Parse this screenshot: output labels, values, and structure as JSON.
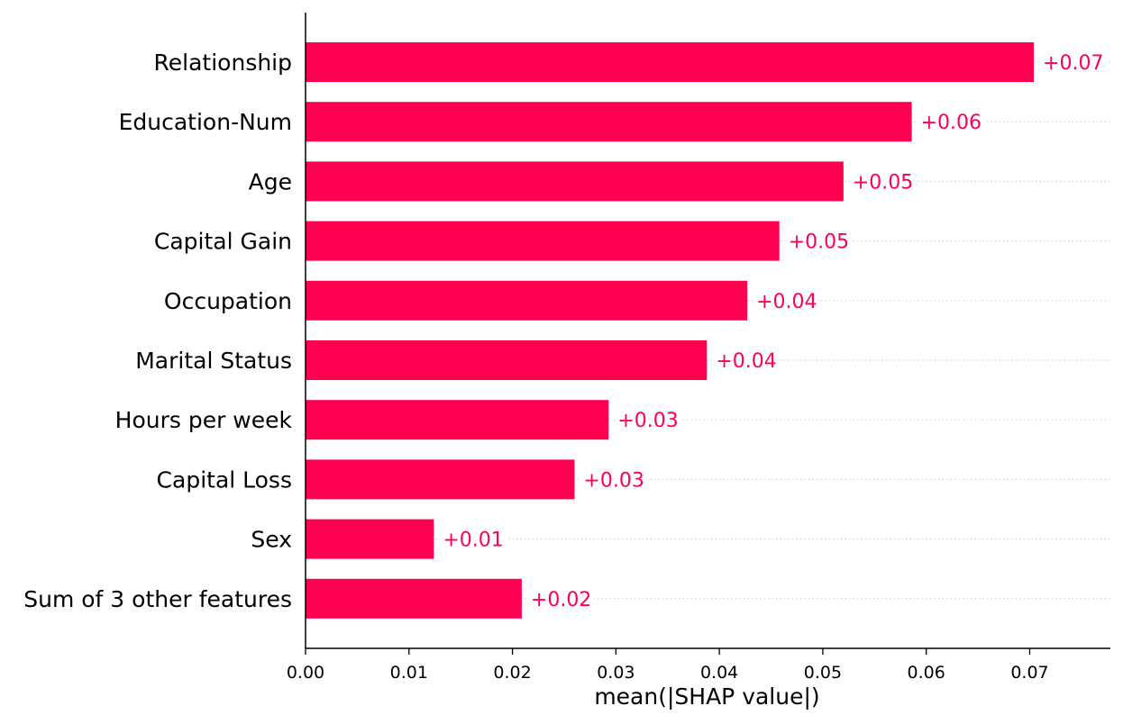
{
  "chart_data": {
    "type": "bar",
    "orientation": "horizontal",
    "categories": [
      "Relationship",
      "Education-Num",
      "Age",
      "Capital Gain",
      "Occupation",
      "Marital Status",
      "Hours per week",
      "Capital Loss",
      "Sex",
      "Sum of 3 other features"
    ],
    "values": [
      0.0704,
      0.0586,
      0.052,
      0.0458,
      0.0427,
      0.0388,
      0.0293,
      0.026,
      0.0124,
      0.0209
    ],
    "value_labels": [
      "+0.07",
      "+0.06",
      "+0.05",
      "+0.05",
      "+0.04",
      "+0.04",
      "+0.03",
      "+0.03",
      "+0.01",
      "+0.02"
    ],
    "xlabel": "mean(|SHAP value|)",
    "ylabel": "",
    "title": "",
    "xlim": [
      0,
      0.0778
    ],
    "xticks": [
      0.0,
      0.01,
      0.02,
      0.03,
      0.04,
      0.05,
      0.06,
      0.07
    ],
    "xtick_labels": [
      "0.00",
      "0.01",
      "0.02",
      "0.03",
      "0.04",
      "0.05",
      "0.06",
      "0.07"
    ],
    "grid": "dotted horizontal guides per bar",
    "bar_color": "#ff0051",
    "label_color": "#ff0051",
    "axis_color": "#000000",
    "guide_color": "#cccccc"
  }
}
